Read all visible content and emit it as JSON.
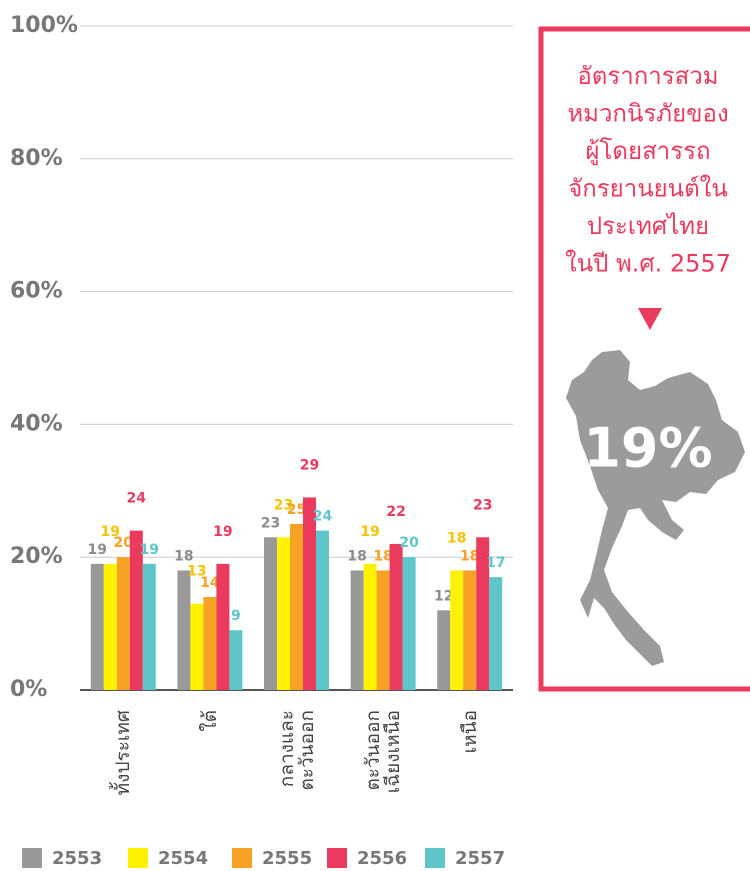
{
  "chart_data": {
    "type": "bar",
    "categories": [
      "ทั้งประเทศ",
      "ใต้",
      "กลางและ\nตะวันออก",
      "ตะวันออก\nเฉียงเหนือ",
      "เหนือ"
    ],
    "series": [
      {
        "name": "2553",
        "color": "#999999",
        "values": [
          19,
          18,
          23,
          18,
          12
        ]
      },
      {
        "name": "2554",
        "color": "#fff200",
        "values": [
          19,
          13,
          23,
          19,
          18
        ]
      },
      {
        "name": "2555",
        "color": "#f7a125",
        "values": [
          20,
          14,
          25,
          18,
          18
        ]
      },
      {
        "name": "2556",
        "color": "#ea3a5e",
        "values": [
          24,
          19,
          29,
          22,
          23
        ]
      },
      {
        "name": "2557",
        "color": "#5ec6c9",
        "values": [
          19,
          9,
          24,
          20,
          17
        ]
      }
    ],
    "label_colors": [
      "#8c8c8c",
      "#f5c400",
      "#f7a125",
      "#ea3a5e",
      "#5ec6c9"
    ],
    "ylim": [
      0,
      100
    ],
    "yticks": [
      {
        "value": 0,
        "label": "0%"
      },
      {
        "value": 20,
        "label": "20%"
      },
      {
        "value": 40,
        "label": "40%"
      },
      {
        "value": 60,
        "label": "60%"
      },
      {
        "value": 80,
        "label": "80%"
      },
      {
        "value": 100,
        "label": "100%"
      }
    ],
    "grid": true
  },
  "panel": {
    "title_lines": [
      "อัตราการสวม",
      "หมวกนิรภัยของ",
      "ผู้โดยสารรถ",
      "จักรยานยนต์ใน",
      "ประเทศไทย",
      "ในปี พ.ศ. 2557"
    ],
    "highlight": "19%"
  }
}
